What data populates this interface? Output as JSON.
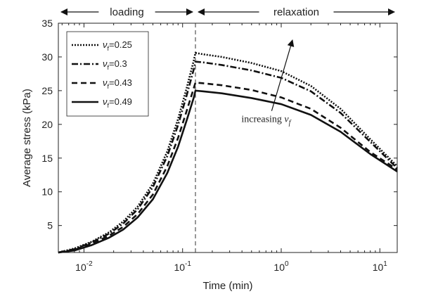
{
  "chart_data": {
    "type": "line",
    "title": "",
    "xlabel": "Time (min)",
    "ylabel": "Average stress (kPa)",
    "xscale": "log",
    "xlim": [
      0.0055,
      15
    ],
    "ylim": [
      1,
      35
    ],
    "yticks": [
      5,
      10,
      15,
      20,
      25,
      30,
      35
    ],
    "xticks": [
      {
        "value": 0.01,
        "base": "10",
        "exp": "-2"
      },
      {
        "value": 0.1,
        "base": "10",
        "exp": "-1"
      },
      {
        "value": 1,
        "base": "10",
        "exp": "0"
      },
      {
        "value": 10,
        "base": "10",
        "exp": "1"
      }
    ],
    "divider_x": 0.135,
    "phases": [
      {
        "label": "loading",
        "from": 0.0055,
        "to": 0.135
      },
      {
        "label": "relaxation",
        "from": 0.135,
        "to": 15
      }
    ],
    "legend_position": "top-left",
    "series": [
      {
        "name": "ν_f=0.25",
        "label_sym": "ν",
        "label_sub": "f",
        "label_val": "=0.25",
        "style": "dotted",
        "x": [
          0.0055,
          0.008,
          0.012,
          0.018,
          0.025,
          0.035,
          0.05,
          0.07,
          0.09,
          0.11,
          0.13,
          0.135,
          0.16,
          0.25,
          0.5,
          1,
          2,
          4,
          8,
          15
        ],
        "y": [
          1.0,
          1.6,
          2.6,
          4.0,
          5.6,
          7.8,
          11.2,
          16.0,
          20.8,
          25.4,
          29.5,
          30.6,
          30.4,
          30.0,
          29.1,
          27.9,
          25.7,
          22.3,
          17.8,
          13.8
        ]
      },
      {
        "name": "ν_f=0.3",
        "label_sym": "ν",
        "label_sub": "f",
        "label_val": "=0.3",
        "style": "dashdot",
        "x": [
          0.0055,
          0.008,
          0.012,
          0.018,
          0.025,
          0.035,
          0.05,
          0.07,
          0.09,
          0.11,
          0.13,
          0.135,
          0.16,
          0.25,
          0.5,
          1,
          2,
          4,
          8,
          15
        ],
        "y": [
          1.0,
          1.5,
          2.5,
          3.8,
          5.3,
          7.4,
          10.7,
          15.3,
          19.9,
          24.3,
          28.2,
          29.3,
          29.2,
          28.8,
          28.0,
          26.9,
          24.9,
          21.7,
          17.4,
          13.5
        ]
      },
      {
        "name": "ν_f=0.43",
        "label_sym": "ν",
        "label_sub": "f",
        "label_val": "=0.43",
        "style": "dashed",
        "x": [
          0.0055,
          0.008,
          0.012,
          0.018,
          0.025,
          0.035,
          0.05,
          0.07,
          0.09,
          0.11,
          0.13,
          0.135,
          0.16,
          0.25,
          0.5,
          1,
          2,
          4,
          8,
          15
        ],
        "y": [
          1.0,
          1.4,
          2.3,
          3.5,
          4.8,
          6.7,
          9.6,
          13.8,
          18.0,
          22.0,
          25.4,
          26.2,
          26.1,
          25.8,
          25.1,
          24.0,
          22.3,
          19.5,
          15.9,
          13.3
        ]
      },
      {
        "name": "ν_f=0.49",
        "label_sym": "ν",
        "label_sub": "f",
        "label_val": "=0.49",
        "style": "solid",
        "x": [
          0.0055,
          0.008,
          0.012,
          0.018,
          0.025,
          0.035,
          0.05,
          0.07,
          0.09,
          0.11,
          0.13,
          0.135,
          0.16,
          0.25,
          0.5,
          1,
          2,
          4,
          8,
          15
        ],
        "y": [
          1.0,
          1.3,
          2.1,
          3.2,
          4.4,
          6.2,
          8.9,
          12.8,
          16.7,
          20.6,
          24.0,
          25.0,
          24.9,
          24.6,
          23.9,
          23.0,
          21.4,
          18.9,
          15.6,
          13.0
        ]
      }
    ],
    "annotation": {
      "text": "increasing ",
      "sym": "ν",
      "sub": "f",
      "arrow_from": {
        "x": 0.8,
        "y": 22.0
      },
      "arrow_to": {
        "x": 1.3,
        "y": 32.5
      }
    }
  }
}
